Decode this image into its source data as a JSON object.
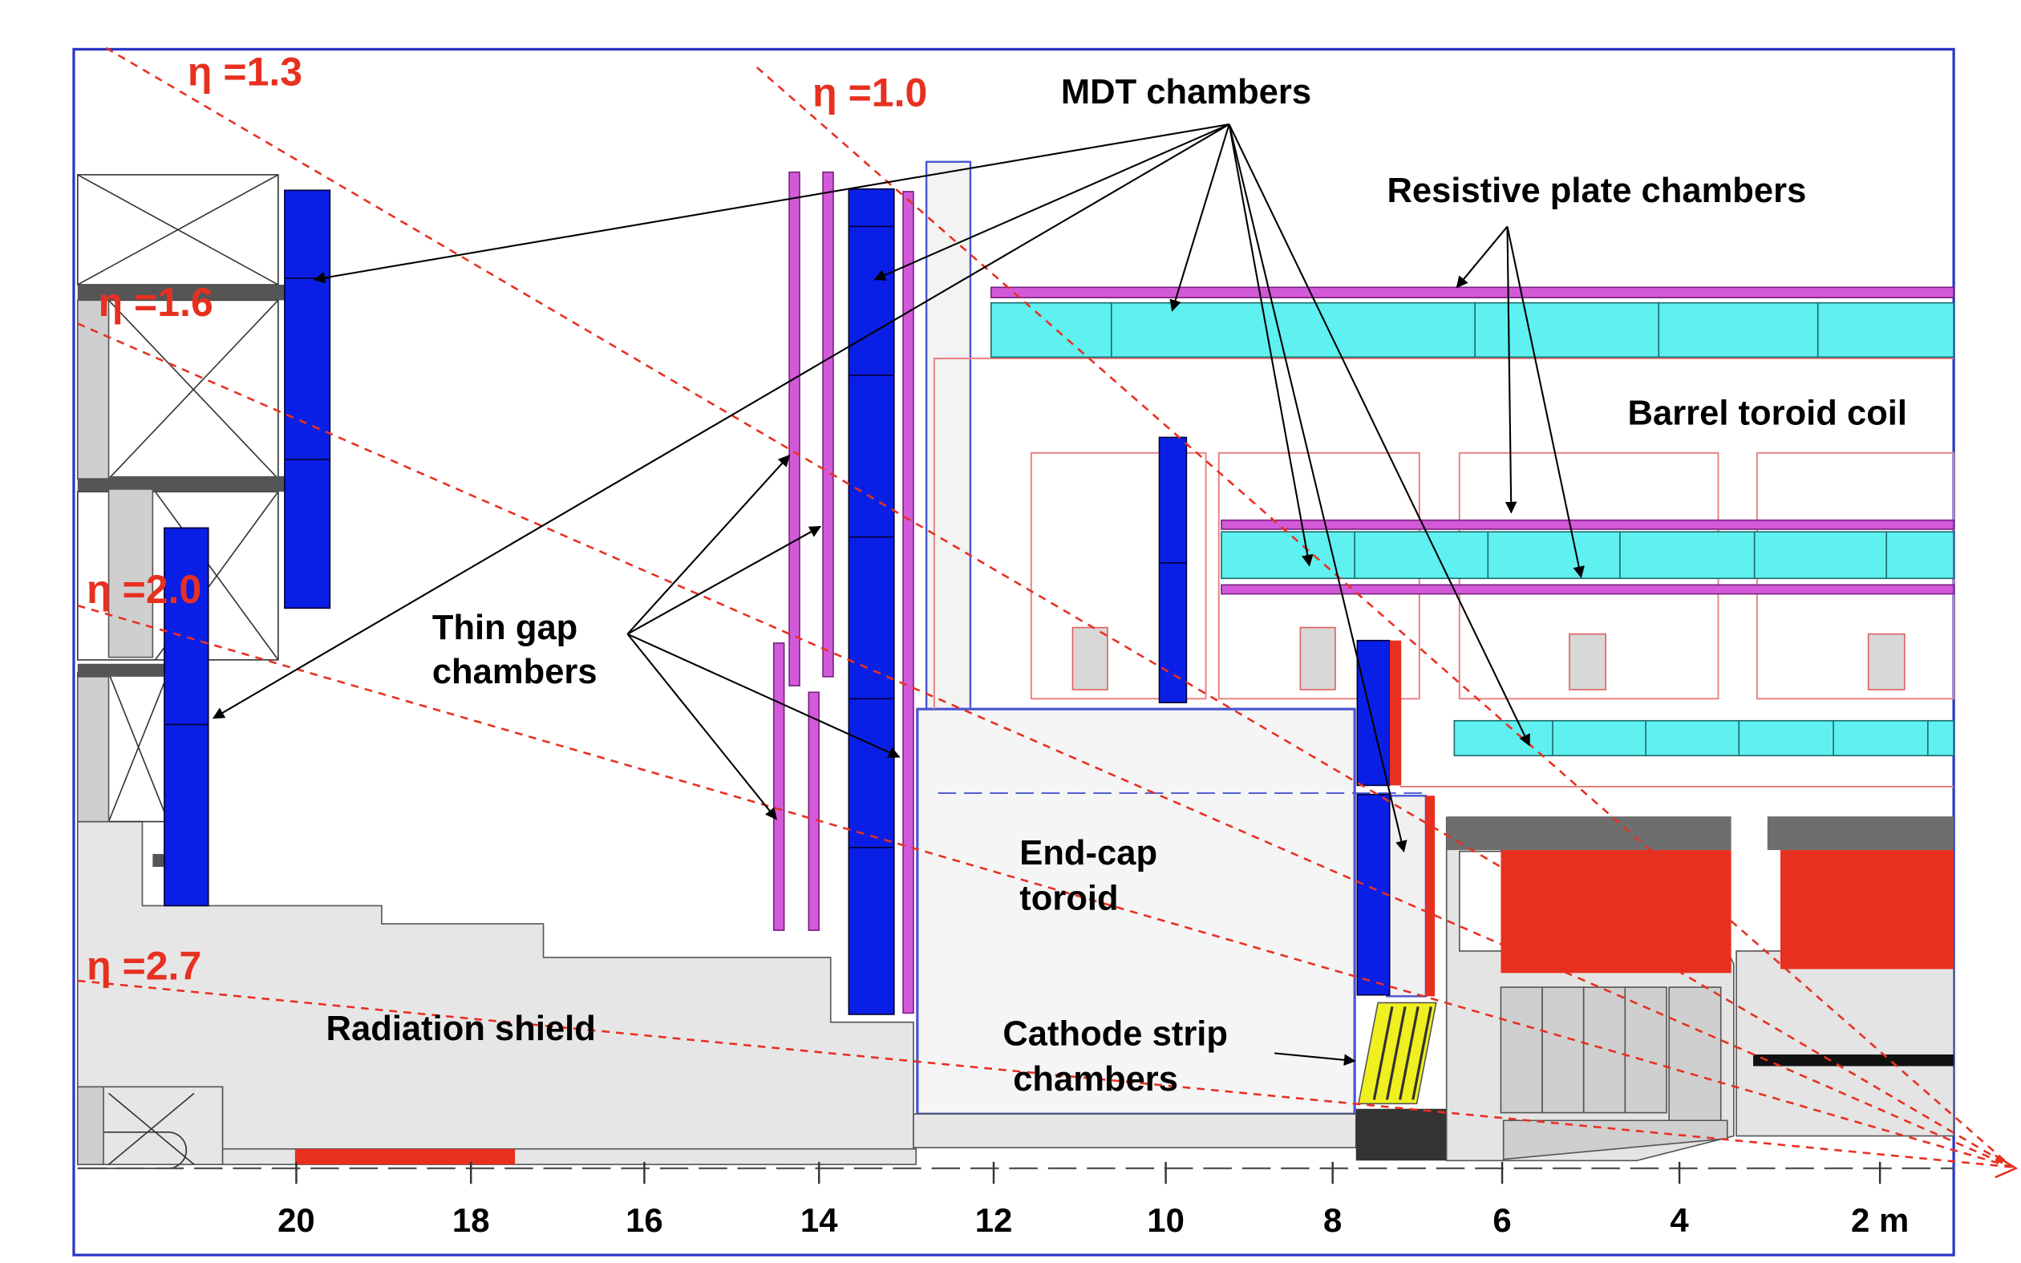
{
  "labels": {
    "mdt": "MDT chambers",
    "rpc": "Resistive plate chambers",
    "barrel_toroid": "Barrel toroid coil",
    "tgc_line1": "Thin gap",
    "tgc_line2": "chambers",
    "endcap_line1": "End-cap",
    "endcap_line2": "toroid",
    "csc_line1": "Cathode strip",
    "csc_line2": "chambers",
    "shield": "Radiation shield"
  },
  "eta_labels": [
    "η =1.3",
    "η =1.0",
    "η =1.6",
    "η =2.0",
    "η =2.7"
  ],
  "axis": {
    "ticks": [
      "20",
      "18",
      "16",
      "14",
      "12",
      "10",
      "8",
      "6",
      "4",
      "2 m"
    ]
  },
  "colors": {
    "mdt": "#0a1fe6",
    "rpc": "#d25ad8",
    "barrel_mdt": "#5ff0f0",
    "eta_line": "#e83020",
    "toroid_coil": "#e83020",
    "shield": "#e6e6e6",
    "csc": "#f0f020",
    "frame": "#2a36c4"
  }
}
